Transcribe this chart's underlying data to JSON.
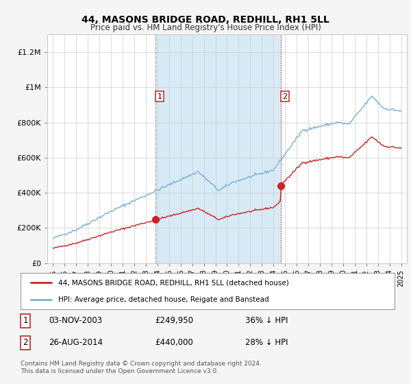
{
  "title": "44, MASONS BRIDGE ROAD, REDHILL, RH1 5LL",
  "subtitle": "Price paid vs. HM Land Registry's House Price Index (HPI)",
  "legend_line1": "44, MASONS BRIDGE ROAD, REDHILL, RH1 5LL (detached house)",
  "legend_line2": "HPI: Average price, detached house, Reigate and Banstead",
  "sale1_date_str": "03-NOV-2003",
  "sale1_price_str": "£249,950",
  "sale1_note": "36% ↓ HPI",
  "sale2_date_str": "26-AUG-2014",
  "sale2_price_str": "£440,000",
  "sale2_note": "28% ↓ HPI",
  "footer": "Contains HM Land Registry data © Crown copyright and database right 2024.\nThis data is licensed under the Open Government Licence v3.0.",
  "hpi_color": "#7ab0d4",
  "price_color": "#cc2222",
  "vline1_color": "#aaaaaa",
  "vline2_color": "#cc3333",
  "shade_color": "#d8eaf5",
  "background_color": "#f5f5f5",
  "plot_bg_color": "#ffffff",
  "sale1_price": 249950,
  "sale2_price": 440000,
  "sale1_year": 2003.84,
  "sale2_year": 2014.63,
  "ylim": [
    0,
    1300000
  ],
  "yticks": [
    0,
    200000,
    400000,
    600000,
    800000,
    1000000,
    1200000
  ],
  "ytick_labels": [
    "£0",
    "£200K",
    "£400K",
    "£600K",
    "£800K",
    "£1M",
    "£1.2M"
  ],
  "xlim_left": 1994.5,
  "xlim_right": 2025.5
}
